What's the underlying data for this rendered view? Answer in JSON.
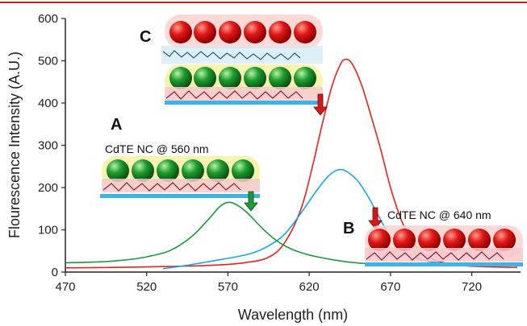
{
  "colors": {
    "top_rule": "#cc1f1f",
    "red_series": "#e8231f",
    "blue_series": "#1aa7e0",
    "green_series": "#1c9a3c",
    "axis": "#222222",
    "substrate": "#3cb4e6",
    "red_sphere": "#e01818",
    "green_sphere": "#1e9c2e"
  },
  "chart_data": {
    "type": "line",
    "xlabel": "Wavelength (nm)",
    "ylabel": "Flourescence Intensity (A.U.)",
    "xlim": [
      470,
      750
    ],
    "ylim": [
      0,
      600
    ],
    "x_ticks": [
      470,
      520,
      570,
      620,
      670,
      720
    ],
    "y_ticks": [
      0,
      100,
      200,
      300,
      400,
      500,
      600
    ],
    "grid": false,
    "series": [
      {
        "key": "red",
        "color": "#e8231f",
        "points": [
          [
            470,
            10
          ],
          [
            500,
            11
          ],
          [
            530,
            13
          ],
          [
            560,
            16
          ],
          [
            580,
            22
          ],
          [
            595,
            35
          ],
          [
            605,
            70
          ],
          [
            615,
            150
          ],
          [
            622,
            250
          ],
          [
            628,
            350
          ],
          [
            634,
            440
          ],
          [
            639,
            490
          ],
          [
            642,
            503
          ],
          [
            646,
            495
          ],
          [
            652,
            445
          ],
          [
            658,
            370
          ],
          [
            664,
            290
          ],
          [
            670,
            200
          ],
          [
            676,
            130
          ],
          [
            682,
            80
          ],
          [
            690,
            45
          ],
          [
            700,
            25
          ],
          [
            715,
            15
          ],
          [
            735,
            12
          ],
          [
            748,
            11
          ]
        ]
      },
      {
        "key": "blue",
        "color": "#1aa7e0",
        "points": [
          [
            530,
            8
          ],
          [
            545,
            16
          ],
          [
            560,
            26
          ],
          [
            575,
            36
          ],
          [
            585,
            45
          ],
          [
            595,
            62
          ],
          [
            605,
            90
          ],
          [
            615,
            140
          ],
          [
            625,
            195
          ],
          [
            632,
            228
          ],
          [
            638,
            242
          ],
          [
            643,
            238
          ],
          [
            650,
            215
          ],
          [
            656,
            180
          ],
          [
            662,
            138
          ],
          [
            668,
            95
          ],
          [
            675,
            62
          ],
          [
            682,
            40
          ],
          [
            690,
            28
          ],
          [
            700,
            22
          ]
        ]
      },
      {
        "key": "green",
        "color": "#1c9a3c",
        "points": [
          [
            470,
            22
          ],
          [
            490,
            24
          ],
          [
            505,
            28
          ],
          [
            520,
            36
          ],
          [
            535,
            52
          ],
          [
            548,
            85
          ],
          [
            558,
            125
          ],
          [
            565,
            155
          ],
          [
            570,
            165
          ],
          [
            575,
            160
          ],
          [
            582,
            140
          ],
          [
            590,
            108
          ],
          [
            598,
            80
          ],
          [
            606,
            60
          ],
          [
            615,
            46
          ],
          [
            625,
            36
          ],
          [
            640,
            26
          ],
          [
            655,
            20
          ],
          [
            670,
            18
          ],
          [
            700,
            17
          ],
          [
            730,
            16
          ],
          [
            748,
            16
          ]
        ]
      }
    ],
    "annotations": [
      {
        "key": "A",
        "label": "A",
        "text": "CdTE NC @ 560 nm"
      },
      {
        "key": "B",
        "label": "B",
        "text": "CdTE NC @ 640 nm"
      },
      {
        "key": "C",
        "label": "C",
        "text": ""
      }
    ]
  }
}
